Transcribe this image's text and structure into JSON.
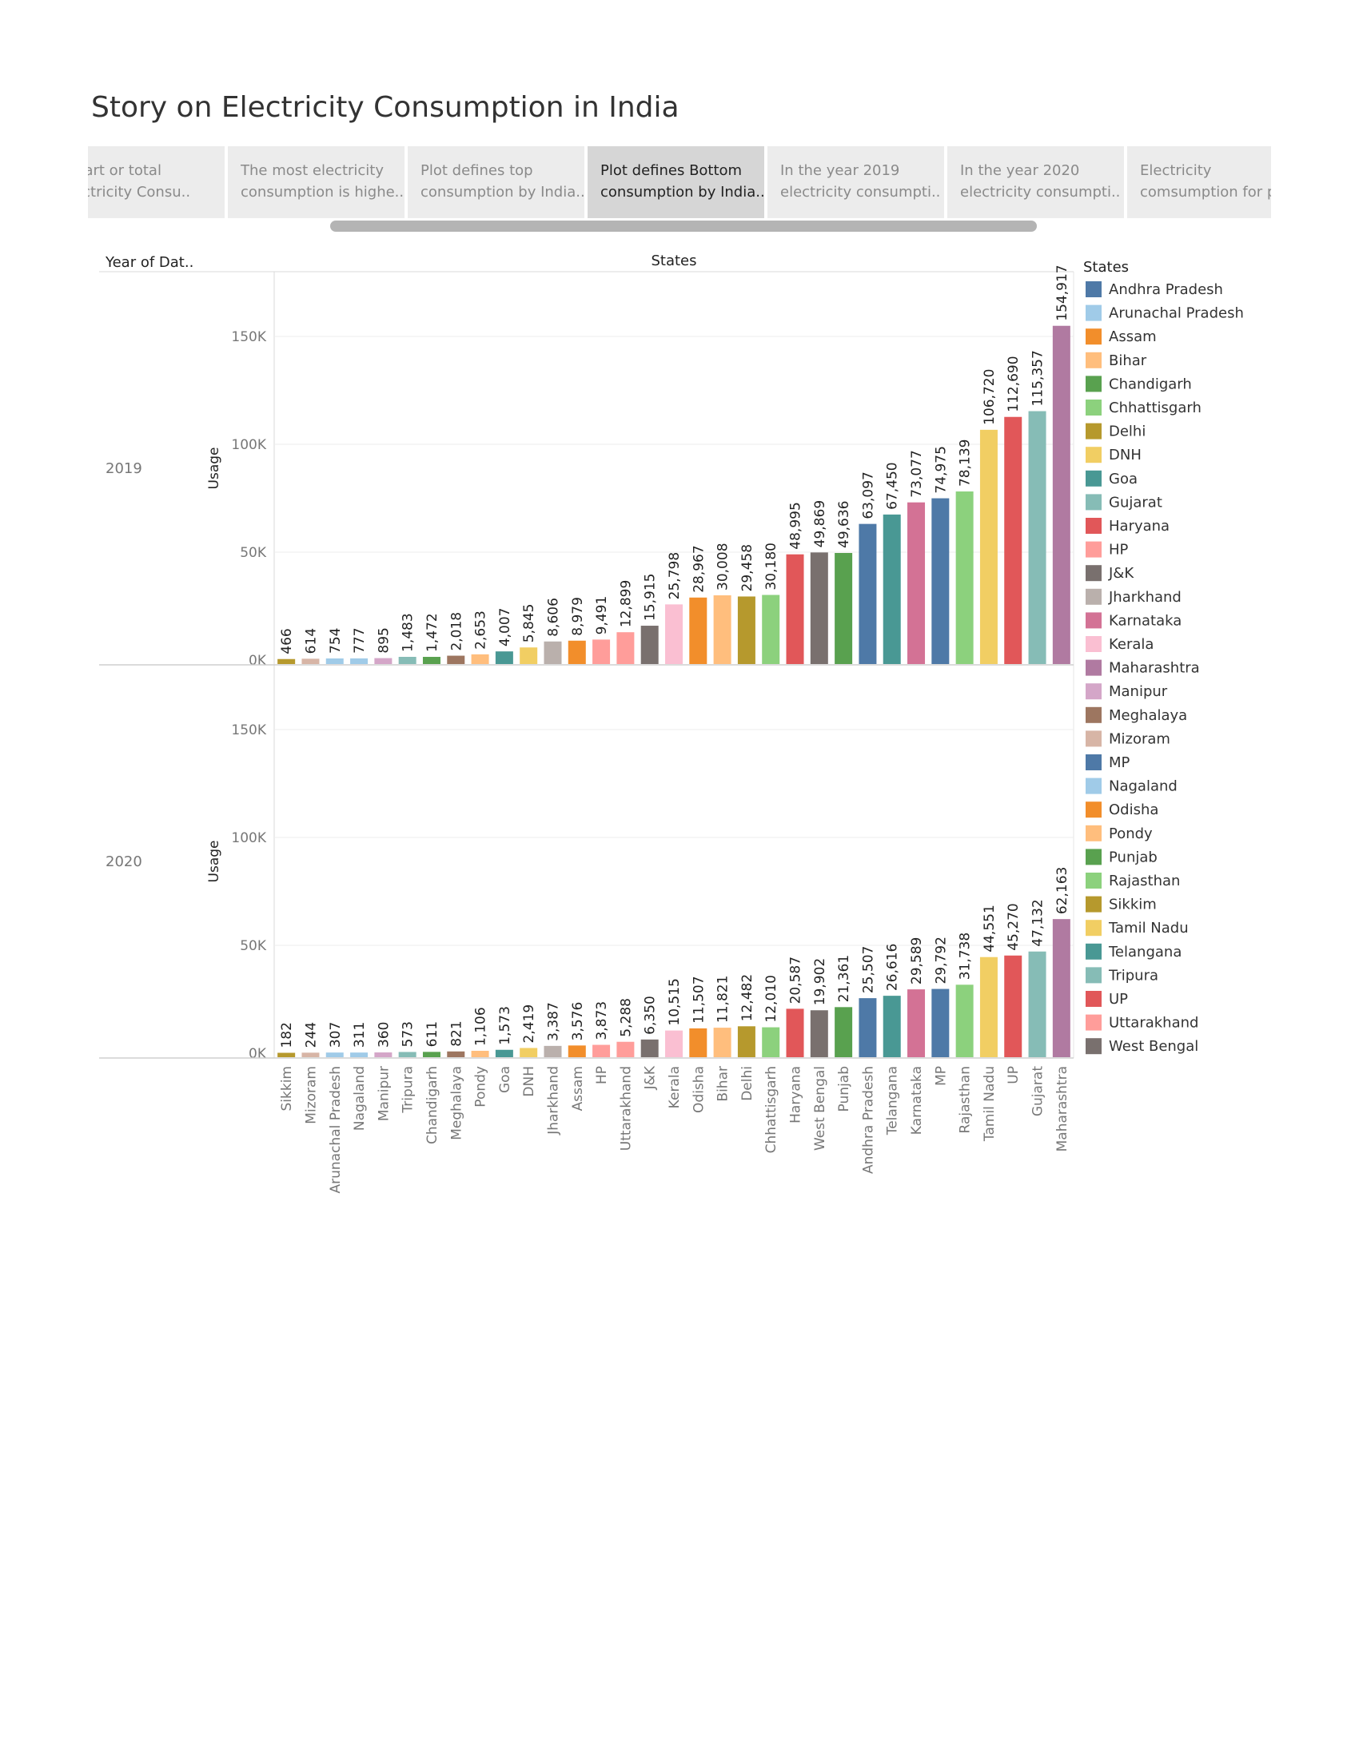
{
  "story": {
    "title": "Story on Electricity Consumption in India",
    "points": [
      {
        "line1": "A part or total",
        "line2": "electricity Consu..",
        "active": false
      },
      {
        "line1": "The most electricity",
        "line2": "consumption is highe..",
        "active": false
      },
      {
        "line1": "Plot defines top",
        "line2": "consumption by India..",
        "active": false
      },
      {
        "line1": "Plot defines Bottom",
        "line2": "consumption by India..",
        "active": true
      },
      {
        "line1": "In the year 2019",
        "line2": "electricity consumpti..",
        "active": false
      },
      {
        "line1": "In the year 2020",
        "line2": "electricity consumpti..",
        "active": false
      },
      {
        "line1": "Electricity",
        "line2": "comsumption for p..",
        "active": false
      }
    ]
  },
  "chart_data": {
    "type": "bar",
    "row_header": "Year of Dat..",
    "column_header": "States",
    "ylabel": "Usage",
    "yticks": [
      "0K",
      "50K",
      "100K",
      "150K"
    ],
    "ylim": [
      0,
      180000
    ],
    "grid": true,
    "legend_title": "States",
    "legend_position": "right",
    "colors": {
      "Andhra Pradesh": "#4e79a7",
      "Arunachal Pradesh": "#a0cbe8",
      "Assam": "#f28e2b",
      "Bihar": "#ffbe7d",
      "Chandigarh": "#59a14f",
      "Chhattisgarh": "#8cd17d",
      "Delhi": "#b6992d",
      "DNH": "#f1ce63",
      "Goa": "#499894",
      "Gujarat": "#86bcb6",
      "Haryana": "#e15759",
      "HP": "#ff9d9a",
      "J&K": "#79706e",
      "Jharkhand": "#bab0ac",
      "Karnataka": "#d37295",
      "Kerala": "#fabfd2",
      "Maharashtra": "#b07aa1",
      "Manipur": "#d4a6c8",
      "Meghalaya": "#9d7660",
      "Mizoram": "#d7b5a6",
      "MP": "#4e79a7",
      "Nagaland": "#a0cbe8",
      "Odisha": "#f28e2b",
      "Pondy": "#ffbe7d",
      "Punjab": "#59a14f",
      "Rajasthan": "#8cd17d",
      "Sikkim": "#b6992d",
      "Tamil Nadu": "#f1ce63",
      "Telangana": "#499894",
      "Tripura": "#86bcb6",
      "UP": "#e15759",
      "Uttarakhand": "#ff9d9a",
      "West Bengal": "#79706e"
    },
    "legend": [
      "Andhra Pradesh",
      "Arunachal Pradesh",
      "Assam",
      "Bihar",
      "Chandigarh",
      "Chhattisgarh",
      "Delhi",
      "DNH",
      "Goa",
      "Gujarat",
      "Haryana",
      "HP",
      "J&K",
      "Jharkhand",
      "Karnataka",
      "Kerala",
      "Maharashtra",
      "Manipur",
      "Meghalaya",
      "Mizoram",
      "MP",
      "Nagaland",
      "Odisha",
      "Pondy",
      "Punjab",
      "Rajasthan",
      "Sikkim",
      "Tamil Nadu",
      "Telangana",
      "Tripura",
      "UP",
      "Uttarakhand",
      "West Bengal"
    ],
    "categories": [
      "Sikkim",
      "Mizoram",
      "Arunachal Pradesh",
      "Nagaland",
      "Manipur",
      "Tripura",
      "Chandigarh",
      "Meghalaya",
      "Pondy",
      "Goa",
      "DNH",
      "Jharkhand",
      "Assam",
      "HP",
      "Uttarakhand",
      "J&K",
      "Kerala",
      "Odisha",
      "Bihar",
      "Delhi",
      "Chhattisgarh",
      "Haryana",
      "West Bengal",
      "Punjab",
      "Andhra Pradesh",
      "Telangana",
      "Karnataka",
      "MP",
      "Rajasthan",
      "Tamil Nadu",
      "UP",
      "Gujarat",
      "Maharashtra"
    ],
    "series": [
      {
        "name": "2019",
        "values": [
          466,
          614,
          754,
          777,
          895,
          1483,
          1472,
          2018,
          2653,
          4007,
          5845,
          8606,
          8979,
          9491,
          12899,
          15915,
          25798,
          28967,
          30008,
          29458,
          30180,
          48995,
          49869,
          49636,
          63097,
          67450,
          73077,
          74975,
          78139,
          106720,
          112690,
          115357,
          154917
        ],
        "labels": [
          "466",
          "614",
          "754",
          "777",
          "895",
          "1,483",
          "1,472",
          "2,018",
          "2,653",
          "4,007",
          "5,845",
          "8,606",
          "8,979",
          "9,491",
          "12,899",
          "15,915",
          "25,798",
          "28,967",
          "30,008",
          "29,458",
          "30,180",
          "48,995",
          "49,869",
          "49,636",
          "63,097",
          "67,450",
          "73,077",
          "74,975",
          "78,139",
          "106,720",
          "112,690",
          "115,357",
          "154,917"
        ]
      },
      {
        "name": "2020",
        "values": [
          182,
          244,
          307,
          311,
          360,
          573,
          611,
          821,
          1106,
          1573,
          2419,
          3387,
          3576,
          3873,
          5288,
          6350,
          10515,
          11507,
          11821,
          12482,
          12010,
          20587,
          19902,
          21361,
          25507,
          26616,
          29589,
          29792,
          31738,
          44551,
          45270,
          47132,
          62163
        ],
        "labels": [
          "182",
          "244",
          "307",
          "311",
          "360",
          "573",
          "611",
          "821",
          "1,106",
          "1,573",
          "2,419",
          "3,387",
          "3,576",
          "3,873",
          "5,288",
          "6,350",
          "10,515",
          "11,507",
          "11,821",
          "12,482",
          "12,010",
          "20,587",
          "19,902",
          "21,361",
          "25,507",
          "26,616",
          "29,589",
          "29,792",
          "31,738",
          "44,551",
          "45,270",
          "47,132",
          "62,163"
        ]
      }
    ]
  }
}
